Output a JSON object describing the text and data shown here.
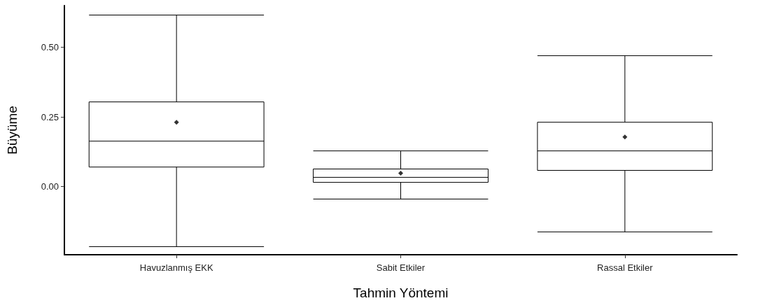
{
  "chart_data": {
    "type": "box",
    "xlabel": "Tahmin Yöntemi",
    "ylabel": "Büyüme",
    "categories": [
      "Havuzlanmış EKK",
      "Sabit Etkiler",
      "Rassal Etkiler"
    ],
    "boxes": [
      {
        "low": -0.216,
        "q1": 0.07,
        "median": 0.163,
        "q3": 0.304,
        "high": 0.616,
        "mean": 0.231
      },
      {
        "low": -0.045,
        "q1": 0.015,
        "median": 0.033,
        "q3": 0.063,
        "high": 0.128,
        "mean": 0.048
      },
      {
        "low": -0.163,
        "q1": 0.058,
        "median": 0.128,
        "q3": 0.231,
        "high": 0.47,
        "mean": 0.178
      }
    ],
    "color": "#000000",
    "marker": "diamond",
    "ylim": [
      -0.245,
      0.65
    ],
    "yticks": [
      {
        "value": 0,
        "label": "0.00"
      },
      {
        "value": 0.25,
        "label": "0.25"
      },
      {
        "value": 0.5,
        "label": "0.50"
      }
    ],
    "grid": false
  }
}
